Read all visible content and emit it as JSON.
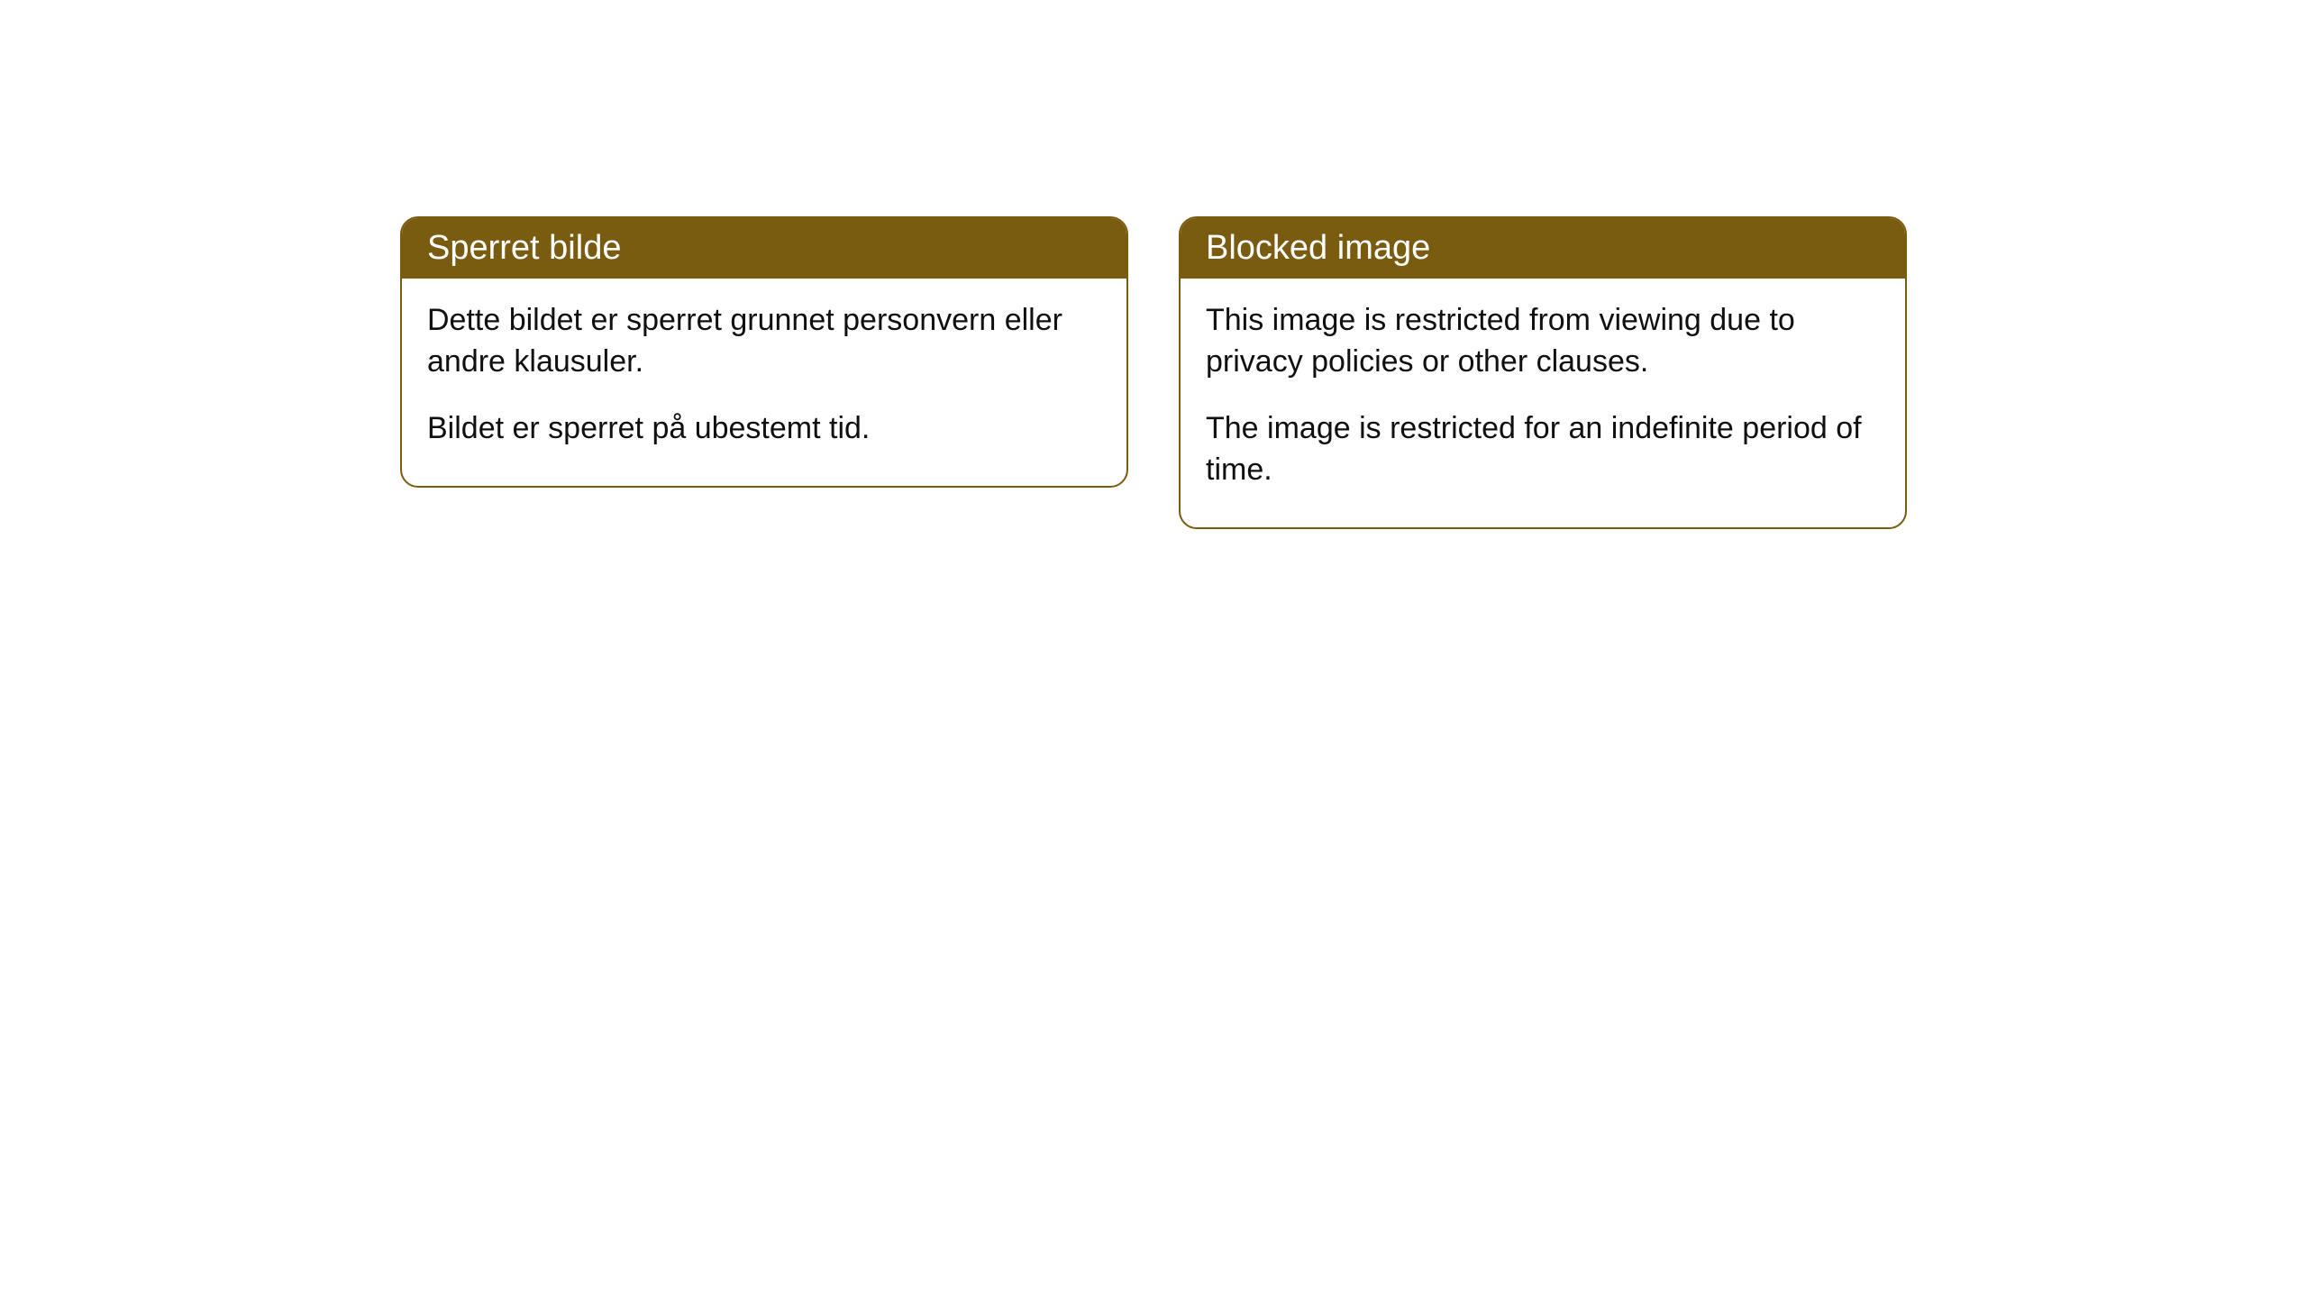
{
  "cards": [
    {
      "title": "Sperret bilde",
      "p1": "Dette bildet er sperret grunnet personvern eller andre klausuler.",
      "p2": "Bildet er sperret på ubestemt tid."
    },
    {
      "title": "Blocked image",
      "p1": "This image is restricted from viewing due to privacy policies or other clauses.",
      "p2": "The image is restricted for an indefinite period of time."
    }
  ],
  "style": {
    "accent_color": "#7a5c11",
    "header_text_color": "#ffffff",
    "body_text_color": "#101010",
    "background_color": "#ffffff",
    "card_border_radius": 20,
    "header_fontsize": 38,
    "body_fontsize": 34
  }
}
